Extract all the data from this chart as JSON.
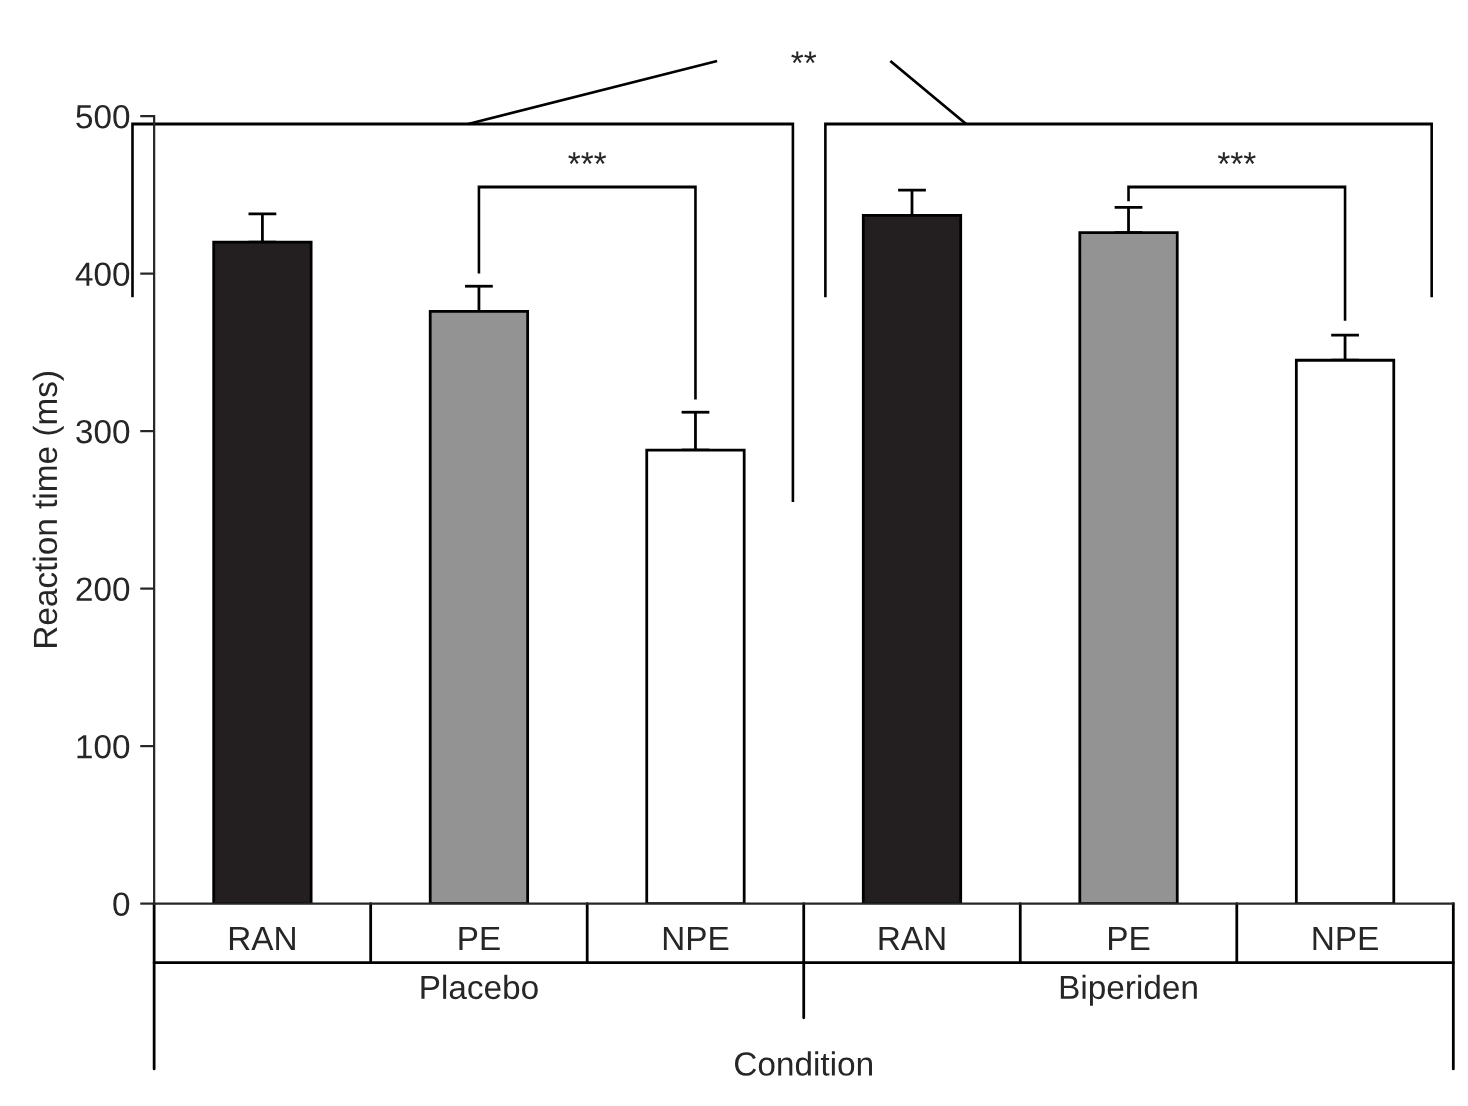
{
  "chart_data": {
    "type": "bar",
    "xlabel": "Condition",
    "ylabel": "Reaction time (ms)",
    "categories": [
      "RAN",
      "PE",
      "NPE",
      "RAN",
      "PE",
      "NPE"
    ],
    "values": [
      420,
      376,
      288,
      437,
      426,
      345
    ],
    "errors": [
      [
        420,
        438
      ],
      [
        376,
        392
      ],
      [
        288,
        312
      ],
      [
        437,
        453
      ],
      [
        426,
        442
      ],
      [
        345,
        361
      ]
    ],
    "colors": [
      "#231f20",
      "#939393",
      "#ffffff",
      "#231f20",
      "#939393",
      "#ffffff"
    ],
    "ylim": [
      0,
      500
    ],
    "yticks": [
      0,
      100,
      200,
      300,
      400,
      500
    ],
    "annotations": [
      "Placebo",
      "Biperiden",
      "**",
      "***",
      "***"
    ],
    "grid": false,
    "legend": false
  }
}
